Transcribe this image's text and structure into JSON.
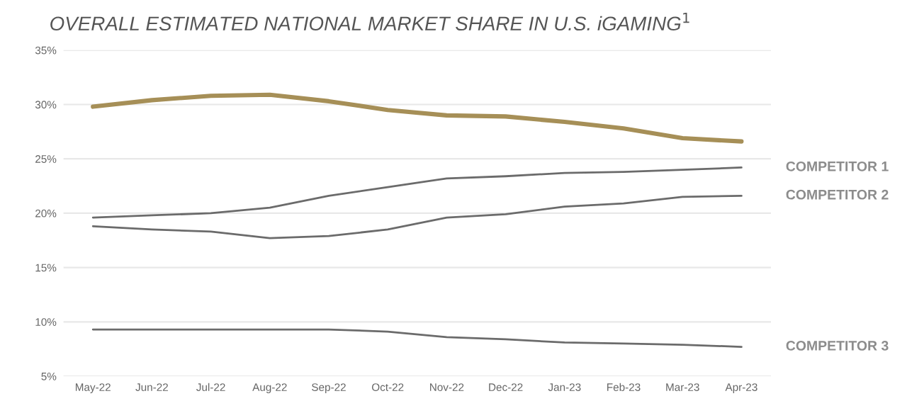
{
  "chart_data": {
    "type": "line",
    "title": "OVERALL ESTIMATED NATIONAL MARKET SHARE IN U.S. iGAMING$^{1}$",
    "categories": [
      "May-22",
      "Jun-22",
      "Jul-22",
      "Aug-22",
      "Sep-22",
      "Oct-22",
      "Nov-22",
      "Dec-22",
      "Jan-23",
      "Feb-23",
      "Mar-23",
      "Apr-23"
    ],
    "series": [
      {
        "color": "#a68f57",
        "values": [
          29.8,
          30.4,
          30.8,
          30.9,
          30.3,
          29.5,
          29.0,
          28.9,
          28.4,
          27.8,
          26.9,
          26.6
        ]
      },
      {
        "name": "COMPETITOR 1",
        "color": "#6b6b6b",
        "values": [
          19.6,
          19.8,
          20.0,
          20.5,
          21.6,
          22.4,
          23.2,
          23.4,
          23.7,
          23.8,
          24.0,
          24.2
        ]
      },
      {
        "name": "COMPETITOR 2",
        "color": "#6b6b6b",
        "values": [
          18.8,
          18.5,
          18.3,
          17.7,
          17.9,
          18.5,
          19.6,
          19.9,
          20.6,
          20.9,
          21.5,
          21.6
        ]
      },
      {
        "name": "COMPETITOR 3",
        "color": "#6b6b6b",
        "values": [
          9.3,
          9.3,
          9.3,
          9.3,
          9.3,
          9.1,
          8.6,
          8.4,
          8.1,
          8.0,
          7.9,
          7.7
        ]
      }
    ],
    "ylim": [
      5,
      35
    ],
    "yticks": [
      {
        "value": 5,
        "label": "5%"
      },
      {
        "value": 10,
        "label": "10%"
      },
      {
        "value": 15,
        "label": "15%"
      },
      {
        "value": 20,
        "label": "20%"
      },
      {
        "value": 25,
        "label": "25%"
      },
      {
        "value": 30,
        "label": "30%"
      },
      {
        "value": 35,
        "label": "35%"
      }
    ],
    "grid": "y",
    "legend": false,
    "marker": "none",
    "line_style": "solid"
  }
}
